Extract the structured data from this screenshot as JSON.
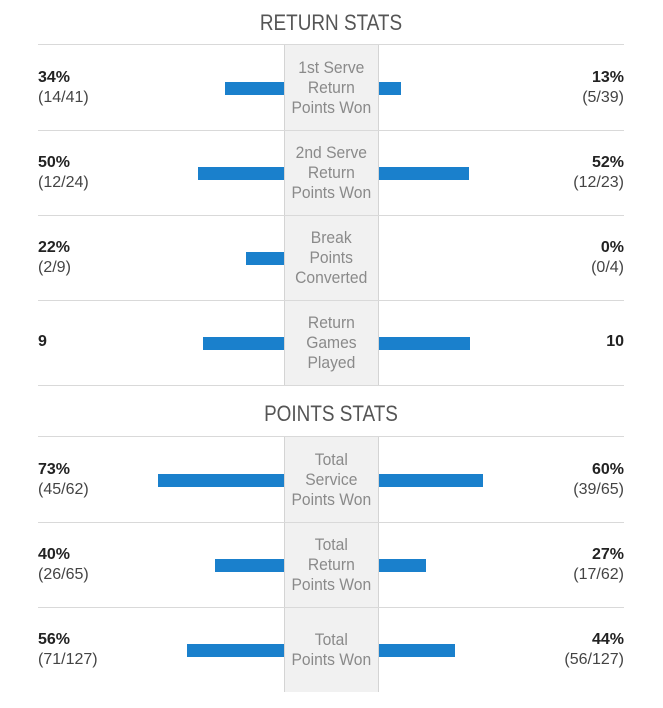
{
  "colors": {
    "bar": "#1a80cc",
    "divider": "#d9d9d9",
    "center_bg": "#f1f1f1"
  },
  "sections": [
    {
      "title": "RETURN STATS",
      "rows": [
        {
          "label": "1st Serve\nReturn\nPoints Won",
          "left_value": "34%",
          "left_detail": "(14/41)",
          "right_value": "13%",
          "right_detail": "(5/39)",
          "left_fraction": 0.34,
          "right_fraction": 0.13
        },
        {
          "label": "2nd Serve\nReturn\nPoints Won",
          "left_value": "50%",
          "left_detail": "(12/24)",
          "right_value": "52%",
          "right_detail": "(12/23)",
          "left_fraction": 0.5,
          "right_fraction": 0.52
        },
        {
          "label": "Break\nPoints\nConverted",
          "left_value": "22%",
          "left_detail": "(2/9)",
          "right_value": "0%",
          "right_detail": "(0/4)",
          "left_fraction": 0.22,
          "right_fraction": 0.0
        },
        {
          "label": "Return\nGames\nPlayed",
          "left_value": "9",
          "left_detail": "",
          "right_value": "10",
          "right_detail": "",
          "left_fraction": 0.47,
          "right_fraction": 0.53
        }
      ]
    },
    {
      "title": "POINTS STATS",
      "rows": [
        {
          "label": "Total\nService\nPoints Won",
          "left_value": "73%",
          "left_detail": "(45/62)",
          "right_value": "60%",
          "right_detail": "(39/65)",
          "left_fraction": 0.73,
          "right_fraction": 0.6
        },
        {
          "label": "Total\nReturn\nPoints Won",
          "left_value": "40%",
          "left_detail": "(26/65)",
          "right_value": "27%",
          "right_detail": "(17/62)",
          "left_fraction": 0.4,
          "right_fraction": 0.27
        },
        {
          "label": "Total\nPoints Won",
          "left_value": "56%",
          "left_detail": "(71/127)",
          "right_value": "44%",
          "right_detail": "(56/127)",
          "left_fraction": 0.56,
          "right_fraction": 0.44
        }
      ]
    }
  ]
}
